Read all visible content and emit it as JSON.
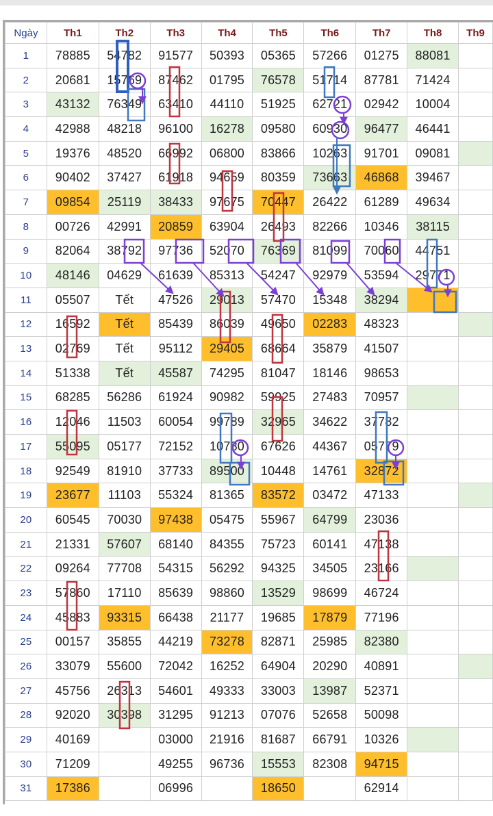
{
  "headers": [
    "Ngày",
    "Th1",
    "Th2",
    "Th3",
    "Th4",
    "Th5",
    "Th6",
    "Th7",
    "Th8",
    "Th9"
  ],
  "rows": [
    {
      "day": "1",
      "cells": [
        {
          "v": "78885"
        },
        {
          "v": "54782"
        },
        {
          "v": "91577"
        },
        {
          "v": "50393"
        },
        {
          "v": "05365"
        },
        {
          "v": "57266"
        },
        {
          "v": "01275"
        },
        {
          "v": "88081",
          "c": "green"
        },
        {
          "v": ""
        }
      ]
    },
    {
      "day": "2",
      "cells": [
        {
          "v": "20681"
        },
        {
          "v": "15769"
        },
        {
          "v": "87462"
        },
        {
          "v": "01795"
        },
        {
          "v": "76578",
          "c": "green"
        },
        {
          "v": "51714"
        },
        {
          "v": "87781"
        },
        {
          "v": "71424"
        },
        {
          "v": ""
        }
      ]
    },
    {
      "day": "3",
      "cells": [
        {
          "v": "43132",
          "c": "green"
        },
        {
          "v": "76349"
        },
        {
          "v": "63410"
        },
        {
          "v": "44110"
        },
        {
          "v": "51925"
        },
        {
          "v": "62721"
        },
        {
          "v": "02942"
        },
        {
          "v": "10004"
        },
        {
          "v": ""
        }
      ]
    },
    {
      "day": "4",
      "cells": [
        {
          "v": "42988"
        },
        {
          "v": "48218"
        },
        {
          "v": "96100"
        },
        {
          "v": "16278",
          "c": "green"
        },
        {
          "v": "09580"
        },
        {
          "v": "60930"
        },
        {
          "v": "96477",
          "c": "green"
        },
        {
          "v": "46441"
        },
        {
          "v": ""
        }
      ]
    },
    {
      "day": "5",
      "cells": [
        {
          "v": "19376"
        },
        {
          "v": "48520"
        },
        {
          "v": "66992"
        },
        {
          "v": "06800"
        },
        {
          "v": "83866"
        },
        {
          "v": "10263"
        },
        {
          "v": "91701"
        },
        {
          "v": "09081"
        },
        {
          "v": "",
          "c": "green"
        }
      ]
    },
    {
      "day": "6",
      "cells": [
        {
          "v": "90402"
        },
        {
          "v": "37427"
        },
        {
          "v": "61918"
        },
        {
          "v": "94659"
        },
        {
          "v": "80359"
        },
        {
          "v": "73663",
          "c": "green"
        },
        {
          "v": "46868",
          "c": "orange"
        },
        {
          "v": "39467"
        },
        {
          "v": ""
        }
      ]
    },
    {
      "day": "7",
      "cells": [
        {
          "v": "09854",
          "c": "orange"
        },
        {
          "v": "25119",
          "c": "green"
        },
        {
          "v": "38433",
          "c": "green"
        },
        {
          "v": "97675"
        },
        {
          "v": "70447",
          "c": "orange"
        },
        {
          "v": "26422"
        },
        {
          "v": "61289"
        },
        {
          "v": "49634"
        },
        {
          "v": ""
        }
      ]
    },
    {
      "day": "8",
      "cells": [
        {
          "v": "00726"
        },
        {
          "v": "42991"
        },
        {
          "v": "20859",
          "c": "orange"
        },
        {
          "v": "63904"
        },
        {
          "v": "26493"
        },
        {
          "v": "82266"
        },
        {
          "v": "10346"
        },
        {
          "v": "38115",
          "c": "green"
        },
        {
          "v": ""
        }
      ]
    },
    {
      "day": "9",
      "cells": [
        {
          "v": "82064"
        },
        {
          "v": "38792"
        },
        {
          "v": "97736"
        },
        {
          "v": "52070"
        },
        {
          "v": "76369",
          "c": "green"
        },
        {
          "v": "81099"
        },
        {
          "v": "70060"
        },
        {
          "v": "44751"
        },
        {
          "v": ""
        }
      ]
    },
    {
      "day": "10",
      "cells": [
        {
          "v": "48146",
          "c": "green"
        },
        {
          "v": "04629"
        },
        {
          "v": "61639"
        },
        {
          "v": "85313"
        },
        {
          "v": "54247"
        },
        {
          "v": "92979"
        },
        {
          "v": "53594"
        },
        {
          "v": "29771"
        },
        {
          "v": ""
        }
      ]
    },
    {
      "day": "11",
      "cells": [
        {
          "v": "05507"
        },
        {
          "v": "Tết"
        },
        {
          "v": "47526"
        },
        {
          "v": "29013",
          "c": "green"
        },
        {
          "v": "57470"
        },
        {
          "v": "15348"
        },
        {
          "v": "38294",
          "c": "green"
        },
        {
          "v": "",
          "c": "orange"
        },
        {
          "v": ""
        }
      ]
    },
    {
      "day": "12",
      "cells": [
        {
          "v": "16592"
        },
        {
          "v": "Tết",
          "c": "orange"
        },
        {
          "v": "85439"
        },
        {
          "v": "86039"
        },
        {
          "v": "49650"
        },
        {
          "v": "02283",
          "c": "orange"
        },
        {
          "v": "48323"
        },
        {
          "v": ""
        },
        {
          "v": "",
          "c": "green"
        }
      ]
    },
    {
      "day": "13",
      "cells": [
        {
          "v": "02769"
        },
        {
          "v": "Tết"
        },
        {
          "v": "95112"
        },
        {
          "v": "29405",
          "c": "orange"
        },
        {
          "v": "68664"
        },
        {
          "v": "35879"
        },
        {
          "v": "41507"
        },
        {
          "v": ""
        },
        {
          "v": ""
        }
      ]
    },
    {
      "day": "14",
      "cells": [
        {
          "v": "51338"
        },
        {
          "v": "Tết",
          "c": "green"
        },
        {
          "v": "45587",
          "c": "green"
        },
        {
          "v": "74295"
        },
        {
          "v": "81047"
        },
        {
          "v": "18146"
        },
        {
          "v": "98653"
        },
        {
          "v": ""
        },
        {
          "v": ""
        }
      ]
    },
    {
      "day": "15",
      "cells": [
        {
          "v": "68285"
        },
        {
          "v": "56286"
        },
        {
          "v": "61924"
        },
        {
          "v": "90982"
        },
        {
          "v": "59925"
        },
        {
          "v": "27483"
        },
        {
          "v": "70957"
        },
        {
          "v": "",
          "c": "green"
        },
        {
          "v": ""
        }
      ]
    },
    {
      "day": "16",
      "cells": [
        {
          "v": "12046"
        },
        {
          "v": "11503"
        },
        {
          "v": "60054"
        },
        {
          "v": "99789"
        },
        {
          "v": "32965",
          "c": "green"
        },
        {
          "v": "34622"
        },
        {
          "v": "37782"
        },
        {
          "v": ""
        },
        {
          "v": ""
        }
      ]
    },
    {
      "day": "17",
      "cells": [
        {
          "v": "55095",
          "c": "green"
        },
        {
          "v": "05177"
        },
        {
          "v": "72152"
        },
        {
          "v": "10780"
        },
        {
          "v": "67626"
        },
        {
          "v": "44367"
        },
        {
          "v": "05779"
        },
        {
          "v": ""
        },
        {
          "v": ""
        }
      ]
    },
    {
      "day": "18",
      "cells": [
        {
          "v": "92549"
        },
        {
          "v": "81910"
        },
        {
          "v": "37733"
        },
        {
          "v": "89500",
          "c": "green"
        },
        {
          "v": "10448"
        },
        {
          "v": "14761"
        },
        {
          "v": "32872",
          "c": "orange"
        },
        {
          "v": ""
        },
        {
          "v": ""
        }
      ]
    },
    {
      "day": "19",
      "cells": [
        {
          "v": "23677",
          "c": "orange"
        },
        {
          "v": "11103"
        },
        {
          "v": "55324"
        },
        {
          "v": "81365"
        },
        {
          "v": "83572",
          "c": "orange"
        },
        {
          "v": "03472"
        },
        {
          "v": "47133"
        },
        {
          "v": ""
        },
        {
          "v": "",
          "c": "green"
        }
      ]
    },
    {
      "day": "20",
      "cells": [
        {
          "v": "60545"
        },
        {
          "v": "70030"
        },
        {
          "v": "97438",
          "c": "orange"
        },
        {
          "v": "05475"
        },
        {
          "v": "55967"
        },
        {
          "v": "64799",
          "c": "green"
        },
        {
          "v": "23036"
        },
        {
          "v": ""
        },
        {
          "v": ""
        }
      ]
    },
    {
      "day": "21",
      "cells": [
        {
          "v": "21331"
        },
        {
          "v": "57607",
          "c": "green"
        },
        {
          "v": "68140"
        },
        {
          "v": "84355"
        },
        {
          "v": "75723"
        },
        {
          "v": "60141"
        },
        {
          "v": "47138"
        },
        {
          "v": ""
        },
        {
          "v": ""
        }
      ]
    },
    {
      "day": "22",
      "cells": [
        {
          "v": "09264"
        },
        {
          "v": "77708"
        },
        {
          "v": "54315"
        },
        {
          "v": "56292"
        },
        {
          "v": "94325"
        },
        {
          "v": "34505"
        },
        {
          "v": "23166"
        },
        {
          "v": "",
          "c": "green"
        },
        {
          "v": ""
        }
      ]
    },
    {
      "day": "23",
      "cells": [
        {
          "v": "57860"
        },
        {
          "v": "17110"
        },
        {
          "v": "85639"
        },
        {
          "v": "98860"
        },
        {
          "v": "13529",
          "c": "green"
        },
        {
          "v": "98699"
        },
        {
          "v": "46724"
        },
        {
          "v": ""
        },
        {
          "v": ""
        }
      ]
    },
    {
      "day": "24",
      "cells": [
        {
          "v": "45883"
        },
        {
          "v": "93315",
          "c": "orange"
        },
        {
          "v": "66438"
        },
        {
          "v": "21177"
        },
        {
          "v": "19685"
        },
        {
          "v": "17879",
          "c": "orange"
        },
        {
          "v": "77196"
        },
        {
          "v": ""
        },
        {
          "v": ""
        }
      ]
    },
    {
      "day": "25",
      "cells": [
        {
          "v": "00157"
        },
        {
          "v": "35855"
        },
        {
          "v": "44219"
        },
        {
          "v": "73278",
          "c": "orange"
        },
        {
          "v": "82871"
        },
        {
          "v": "25985"
        },
        {
          "v": "82380",
          "c": "green"
        },
        {
          "v": ""
        },
        {
          "v": ""
        }
      ]
    },
    {
      "day": "26",
      "cells": [
        {
          "v": "33079"
        },
        {
          "v": "55600"
        },
        {
          "v": "72042"
        },
        {
          "v": "16252"
        },
        {
          "v": "64904"
        },
        {
          "v": "20290"
        },
        {
          "v": "40891"
        },
        {
          "v": ""
        },
        {
          "v": "",
          "c": "green"
        }
      ]
    },
    {
      "day": "27",
      "cells": [
        {
          "v": "45756"
        },
        {
          "v": "26313"
        },
        {
          "v": "54601"
        },
        {
          "v": "49333"
        },
        {
          "v": "33003"
        },
        {
          "v": "13987",
          "c": "green"
        },
        {
          "v": "52371"
        },
        {
          "v": ""
        },
        {
          "v": ""
        }
      ]
    },
    {
      "day": "28",
      "cells": [
        {
          "v": "92020"
        },
        {
          "v": "30398",
          "c": "green"
        },
        {
          "v": "31295"
        },
        {
          "v": "91213"
        },
        {
          "v": "07076"
        },
        {
          "v": "52658"
        },
        {
          "v": "50098"
        },
        {
          "v": ""
        },
        {
          "v": ""
        }
      ]
    },
    {
      "day": "29",
      "cells": [
        {
          "v": "40169"
        },
        {
          "v": ""
        },
        {
          "v": "03000"
        },
        {
          "v": "21916"
        },
        {
          "v": "81687"
        },
        {
          "v": "66791"
        },
        {
          "v": "10326"
        },
        {
          "v": "",
          "c": "green"
        },
        {
          "v": ""
        }
      ]
    },
    {
      "day": "30",
      "cells": [
        {
          "v": "71209"
        },
        {
          "v": ""
        },
        {
          "v": "49255"
        },
        {
          "v": "96736"
        },
        {
          "v": "15553",
          "c": "green"
        },
        {
          "v": "82308"
        },
        {
          "v": "94715",
          "c": "orange"
        },
        {
          "v": ""
        },
        {
          "v": ""
        }
      ]
    },
    {
      "day": "31",
      "cells": [
        {
          "v": "17386",
          "c": "orange"
        },
        {
          "v": ""
        },
        {
          "v": "06996"
        },
        {
          "v": ""
        },
        {
          "v": "18650",
          "c": "orange"
        },
        {
          "v": ""
        },
        {
          "v": "62914"
        },
        {
          "v": ""
        },
        {
          "v": ""
        }
      ]
    }
  ],
  "colors": {
    "green_cell": "#e3f1dc",
    "orange_cell": "#ffbf2c",
    "red_mark": "#c0343f",
    "blue_mark": "#3f78c0",
    "purple_mark": "#7b3fd6"
  }
}
